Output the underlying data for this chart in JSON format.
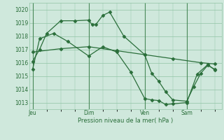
{
  "background_color": "#cfe8dc",
  "grid_color": "#90c4a4",
  "line_color": "#2a6e3a",
  "xlabel": "Pression niveau de la mer( hPa )",
  "ylim": [
    1012.5,
    1020.5
  ],
  "yticks": [
    1013,
    1014,
    1015,
    1016,
    1017,
    1018,
    1019,
    1020
  ],
  "xtick_labels": [
    "Jeu",
    "Dim",
    "Ven",
    "Sam"
  ],
  "xtick_positions": [
    0,
    8,
    16,
    22
  ],
  "xlim": [
    -0.5,
    27.0
  ],
  "line1_x": [
    0,
    1,
    2,
    4,
    6,
    8,
    8.5,
    9,
    10,
    11,
    13,
    16,
    17,
    18,
    19,
    20,
    22,
    23,
    24,
    25,
    26
  ],
  "line1_y": [
    1016.1,
    1017.0,
    1018.2,
    1019.15,
    1019.15,
    1019.2,
    1018.85,
    1018.85,
    1019.55,
    1019.8,
    1018.0,
    1016.6,
    1015.2,
    1014.6,
    1013.8,
    1013.2,
    1013.1,
    1014.2,
    1015.2,
    1015.8,
    1015.5
  ],
  "line2_x": [
    0,
    1,
    3,
    5,
    8,
    10,
    12,
    14,
    16,
    17,
    18,
    19,
    20,
    22,
    23.5,
    25,
    26
  ],
  "line2_y": [
    1015.5,
    1017.8,
    1018.2,
    1017.6,
    1016.5,
    1017.2,
    1016.8,
    1015.3,
    1013.3,
    1013.2,
    1013.15,
    1012.85,
    1012.9,
    1013.0,
    1015.15,
    1015.85,
    1015.45
  ],
  "line3_x": [
    0,
    4,
    8,
    12,
    16,
    20,
    24,
    26
  ],
  "line3_y": [
    1016.8,
    1017.05,
    1017.2,
    1016.9,
    1016.6,
    1016.3,
    1016.0,
    1015.9
  ]
}
